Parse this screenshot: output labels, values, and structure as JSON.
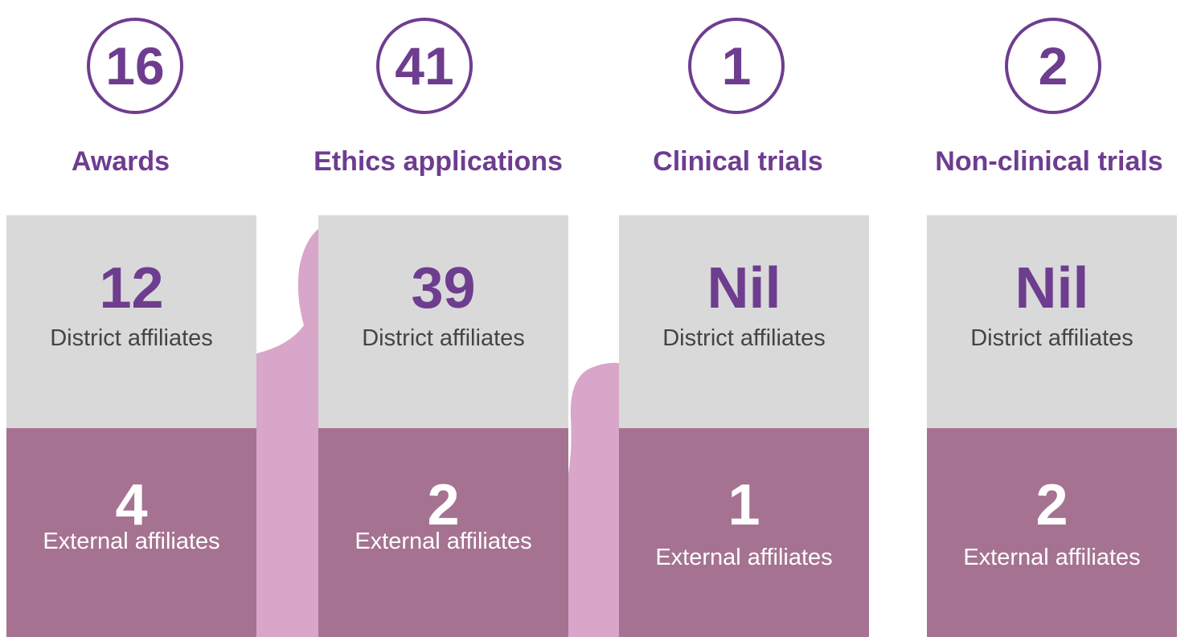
{
  "columns": [
    {
      "value": 16,
      "label": "Awards",
      "district": {
        "value": 12,
        "label": "District affiliates"
      },
      "external": {
        "value": 4,
        "label": "External affiliates"
      }
    },
    {
      "value": 41,
      "label": "Ethics applications",
      "district": {
        "value": 39,
        "label": "District affiliates"
      },
      "external": {
        "value": 2,
        "label": "External affiliates"
      }
    },
    {
      "value": 1,
      "label": "Clinical trials",
      "district": {
        "value": "Nil",
        "label": "District affiliates"
      },
      "external": {
        "value": 1,
        "label": "External affiliates"
      }
    },
    {
      "value": 2,
      "label": "Non-clinical trials",
      "district": {
        "value": "Nil",
        "label": "District affiliates"
      },
      "external": {
        "value": 2,
        "label": "External affiliates"
      }
    }
  ]
}
